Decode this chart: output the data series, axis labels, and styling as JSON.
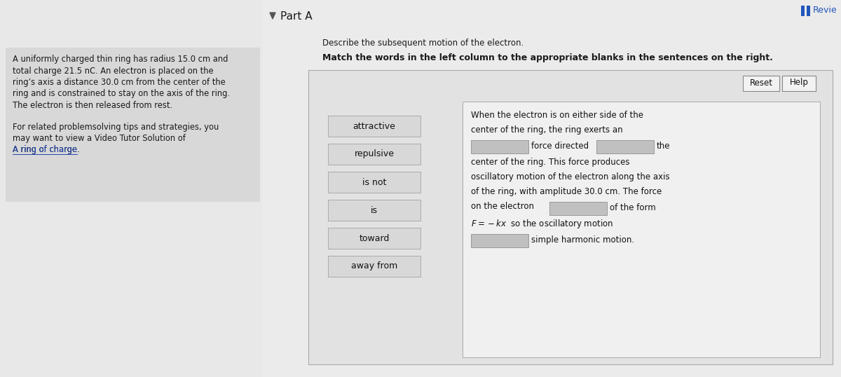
{
  "bg_color": "#e8e8e8",
  "left_panel_bg": "#d0d0d0",
  "right_bg": "#ececec",
  "panel_bg": "#e2e2e2",
  "sent_box_bg": "#f0f0f0",
  "button_bg": "#e8e8e8",
  "blank_bg": "#c0c0c0",
  "text_color": "#1a1a1a",
  "link_color": "#2244aa",
  "border_color": "#aaaaaa",
  "left_text_lines": [
    "A uniformly charged thin ring has radius 15.0 cm and",
    "total charge 21.5 nC. An electron is placed on the",
    "ring’s axis a distance 30.0 cm from the center of the",
    "ring and is constrained to stay on the axis of the ring.",
    "The electron is then released from rest."
  ],
  "left_text2_lines": [
    "For related problemsolving tips and strategies, you",
    "may want to view a Video Tutor Solution of",
    "A ring of charge."
  ],
  "part_a_label": "Part A",
  "revie_label": "Revie",
  "describe_text": "Describe the subsequent motion of the electron.",
  "match_text": "Match the words in the left column to the appropriate blanks in the sentences on the right.",
  "word_buttons": [
    "attractive",
    "repulsive",
    "is not",
    "is",
    "toward",
    "away from"
  ],
  "reset_label": "Reset",
  "help_label": "Help"
}
